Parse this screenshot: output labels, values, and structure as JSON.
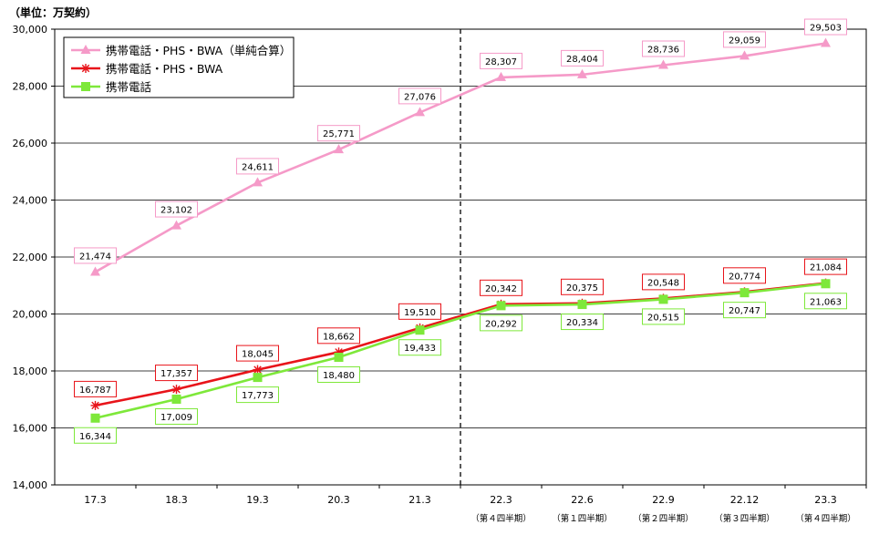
{
  "chart_data": {
    "type": "line",
    "unit_label": "（単位：万契約）",
    "categories": [
      "17.3",
      "18.3",
      "19.3",
      "20.3",
      "21.3",
      "22.3",
      "22.6",
      "22.9",
      "22.12",
      "23.3"
    ],
    "sublabels": [
      "",
      "",
      "",
      "",
      "",
      "（第４四半期）",
      "（第１四半期）",
      "（第２四半期）",
      "（第３四半期）",
      "（第４四半期）"
    ],
    "ylim": [
      14000,
      30000
    ],
    "yticks": [
      14000,
      16000,
      18000,
      20000,
      22000,
      24000,
      26000,
      28000,
      30000
    ],
    "ytick_labels": [
      "14,000",
      "16,000",
      "18,000",
      "20,000",
      "22,000",
      "24,000",
      "26,000",
      "28,000",
      "30,000"
    ],
    "grid": true,
    "divider_between": [
      "21.3",
      "22.3"
    ],
    "legend_position": "top-left",
    "series": [
      {
        "name": "携帯電話・PHS・BWA（単純合算）",
        "color": "#f59ac8",
        "marker": "triangle",
        "label_position": "above",
        "values": [
          21474,
          23102,
          24611,
          25771,
          27076,
          28307,
          28404,
          28736,
          29059,
          29503
        ],
        "labels": [
          "21,474",
          "23,102",
          "24,611",
          "25,771",
          "27,076",
          "28,307",
          "28,404",
          "28,736",
          "29,059",
          "29,503"
        ]
      },
      {
        "name": "携帯電話・PHS・BWA",
        "color": "#e8141a",
        "marker": "asterisk",
        "label_position": "above",
        "values": [
          16787,
          17357,
          18045,
          18662,
          19510,
          20342,
          20375,
          20548,
          20774,
          21084
        ],
        "labels": [
          "16,787",
          "17,357",
          "18,045",
          "18,662",
          "19,510",
          "20,342",
          "20,375",
          "20,548",
          "20,774",
          "21,084"
        ]
      },
      {
        "name": "携帯電話",
        "color": "#7ee83a",
        "marker": "square",
        "label_position": "below",
        "values": [
          16344,
          17009,
          17773,
          18480,
          19433,
          20292,
          20334,
          20515,
          20747,
          21063
        ],
        "labels": [
          "16,344",
          "17,009",
          "17,773",
          "18,480",
          "19,433",
          "20,292",
          "20,334",
          "20,515",
          "20,747",
          "21,063"
        ]
      }
    ]
  }
}
